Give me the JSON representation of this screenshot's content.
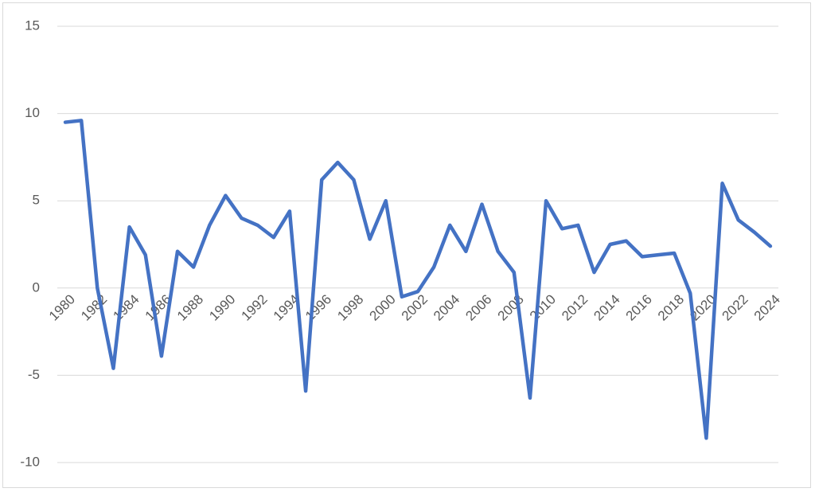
{
  "chart_data": {
    "type": "line",
    "categories": [
      "1980",
      null,
      "1982",
      null,
      "1984",
      null,
      "1986",
      null,
      "1988",
      null,
      "1990",
      null,
      "1992",
      null,
      "1994",
      null,
      "1996",
      null,
      "1998",
      null,
      "2000",
      null,
      "2002",
      null,
      "2004",
      null,
      "2006",
      null,
      "2008",
      null,
      "2010",
      null,
      "2012",
      null,
      "2014",
      null,
      "2016",
      null,
      "2018",
      null,
      "2020",
      null,
      "2022",
      null,
      "2024"
    ],
    "values": [
      9.5,
      9.6,
      0,
      -4.6,
      3.5,
      1.9,
      -3.9,
      2.1,
      1.2,
      3.6,
      5.3,
      4.0,
      3.6,
      2.9,
      4.4,
      -5.9,
      6.2,
      7.2,
      6.2,
      2.8,
      5.0,
      -0.5,
      -0.2,
      1.2,
      3.6,
      2.1,
      4.8,
      2.1,
      0.9,
      -6.3,
      5.0,
      3.4,
      3.6,
      0.9,
      2.5,
      2.7,
      1.8,
      1.9,
      2.0,
      -0.3,
      -8.6,
      6.0,
      3.9,
      3.2,
      2.4
    ],
    "color": "#4472c4",
    "ylim": [
      -10,
      15
    ],
    "yticks": [
      -10,
      -5,
      0,
      5,
      10,
      15
    ],
    "grid": true
  }
}
